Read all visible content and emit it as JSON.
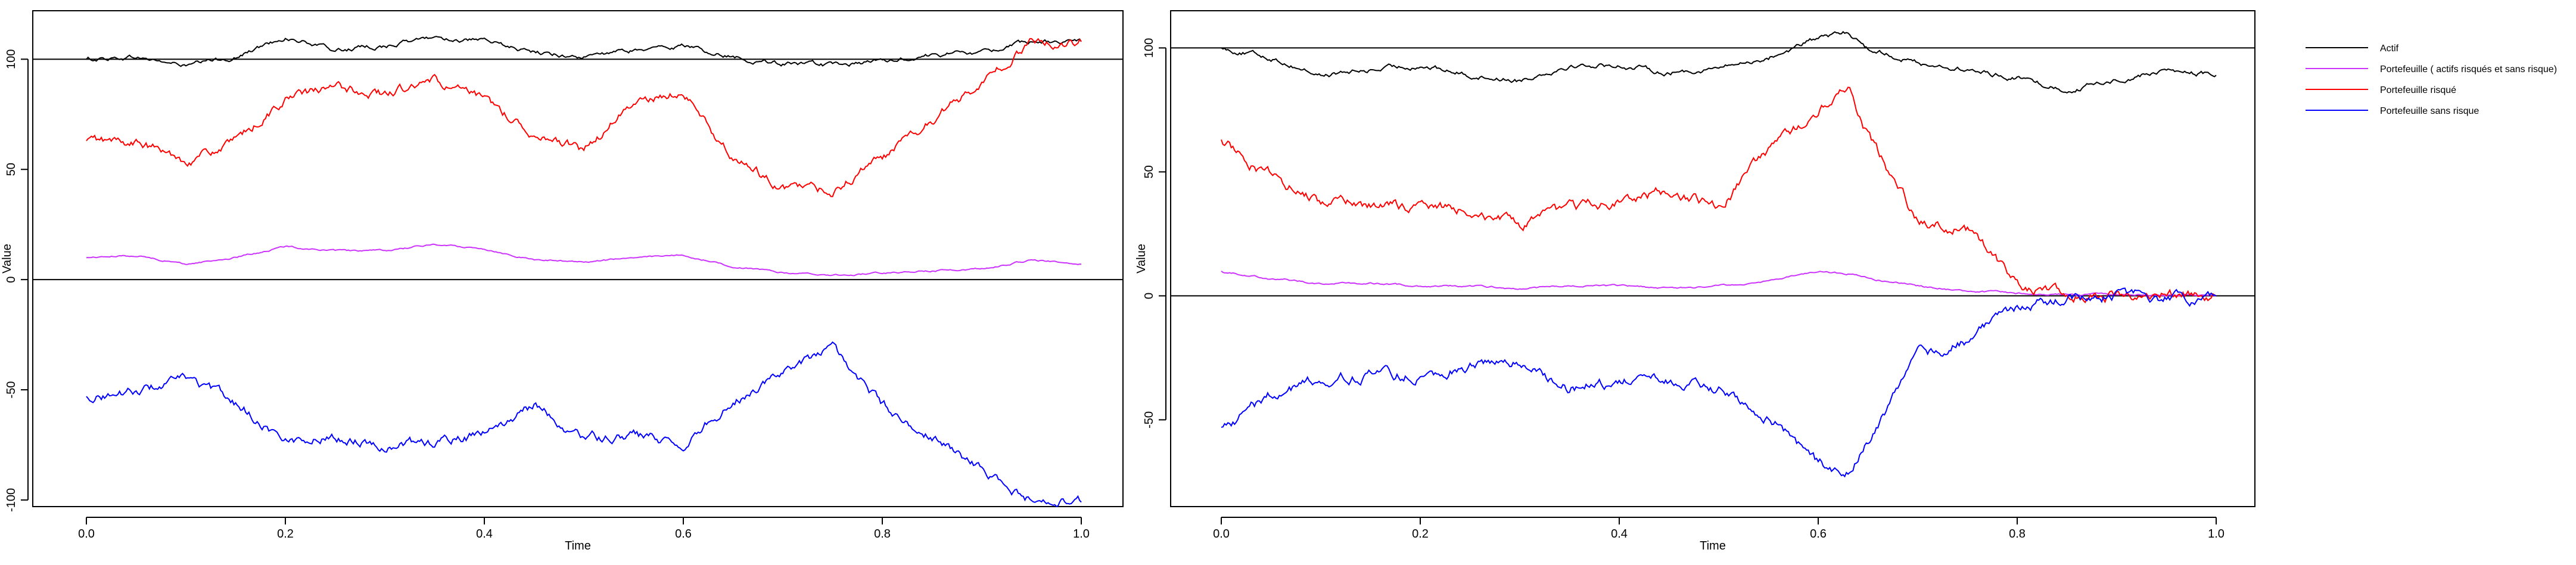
{
  "colors": {
    "actif": "#000000",
    "portefeuille": "#cc33ff",
    "risque": "#ff0000",
    "sans_risque": "#0000ff",
    "axis": "#000000"
  },
  "chart_data": [
    {
      "type": "line",
      "title": "",
      "xlabel": "Time",
      "ylabel": "Value",
      "xlim": [
        0,
        1
      ],
      "ylim": [
        -103,
        122
      ],
      "xticks": [
        "0.0",
        "0.2",
        "0.4",
        "0.6",
        "0.8",
        "1.0"
      ],
      "yticks": [
        "-100",
        "-50",
        "0",
        "50",
        "100"
      ],
      "hlines": [
        0,
        100
      ],
      "x": [
        0.0,
        0.05,
        0.1,
        0.15,
        0.2,
        0.25,
        0.3,
        0.35,
        0.4,
        0.45,
        0.5,
        0.55,
        0.6,
        0.65,
        0.7,
        0.75,
        0.8,
        0.85,
        0.9,
        0.95,
        1.0
      ],
      "series": [
        {
          "key": "actif",
          "values": [
            100,
            101,
            97,
            101,
            110,
            104,
            106,
            110,
            108,
            103,
            101,
            104,
            106,
            101,
            98,
            97,
            99,
            102,
            103,
            108,
            108
          ]
        },
        {
          "key": "portefeuille",
          "values": [
            10,
            11,
            7,
            10,
            15,
            13,
            13,
            16,
            14,
            9,
            8,
            10,
            11,
            6,
            3,
            2,
            3,
            4,
            5,
            9,
            7
          ]
        },
        {
          "key": "risque",
          "values": [
            63,
            62,
            54,
            62,
            82,
            87,
            84,
            90,
            81,
            67,
            58,
            80,
            85,
            55,
            42,
            40,
            55,
            72,
            90,
            108,
            108
          ]
        },
        {
          "key": "sans_risque",
          "values": [
            -53,
            -51,
            -45,
            -56,
            -73,
            -71,
            -75,
            -74,
            -70,
            -57,
            -72,
            -71,
            -75,
            -55,
            -42,
            -32,
            -57,
            -72,
            -86,
            -100,
            -101
          ]
        }
      ]
    },
    {
      "type": "line",
      "title": "",
      "xlabel": "Time",
      "ylabel": "Value",
      "xlim": [
        0,
        1
      ],
      "ylim": [
        -85,
        115
      ],
      "xticks": [
        "0.0",
        "0.2",
        "0.4",
        "0.6",
        "0.8",
        "1.0"
      ],
      "yticks": [
        "-50",
        "0",
        "50",
        "100"
      ],
      "hlines": [
        0,
        100
      ],
      "legend": {
        "placement": "right",
        "entries": [
          {
            "key": "actif",
            "label": "Actif"
          },
          {
            "key": "portefeuille",
            "label": "Portefeuille  ( actifs risqués et sans risque)"
          },
          {
            "key": "risque",
            "label": "Portefeuille risqué"
          },
          {
            "key": "sans_risque",
            "label": "Portefeuille sans risque"
          }
        ]
      },
      "x": [
        0.0,
        0.05,
        0.1,
        0.15,
        0.2,
        0.25,
        0.3,
        0.35,
        0.4,
        0.45,
        0.5,
        0.55,
        0.6,
        0.63,
        0.65,
        0.7,
        0.75,
        0.8,
        0.85,
        0.9,
        0.95,
        1.0
      ],
      "series": [
        {
          "key": "actif",
          "values": [
            100,
            96,
            89,
            91,
            93,
            89,
            87,
            93,
            93,
            90,
            92,
            96,
            104,
            106,
            100,
            94,
            91,
            88,
            83,
            87,
            91,
            89
          ]
        },
        {
          "key": "portefeuille",
          "values": [
            10,
            7,
            5,
            5,
            4,
            4,
            3,
            4,
            4,
            3,
            4,
            6,
            10,
            9,
            7,
            4,
            2,
            1,
            0.5,
            0.5,
            0.5,
            0
          ]
        },
        {
          "key": "risque",
          "values": [
            63,
            48,
            38,
            36,
            36,
            35,
            28,
            35,
            38,
            42,
            36,
            58,
            75,
            85,
            65,
            30,
            27,
            5,
            1,
            0,
            1,
            0
          ]
        },
        {
          "key": "sans_risque",
          "values": [
            -53,
            -40,
            -33,
            -32,
            -32,
            -28,
            -27,
            -37,
            -34,
            -35,
            -38,
            -48,
            -68,
            -70,
            -58,
            -25,
            -18,
            -5,
            0,
            0,
            -1,
            0
          ]
        }
      ]
    }
  ]
}
